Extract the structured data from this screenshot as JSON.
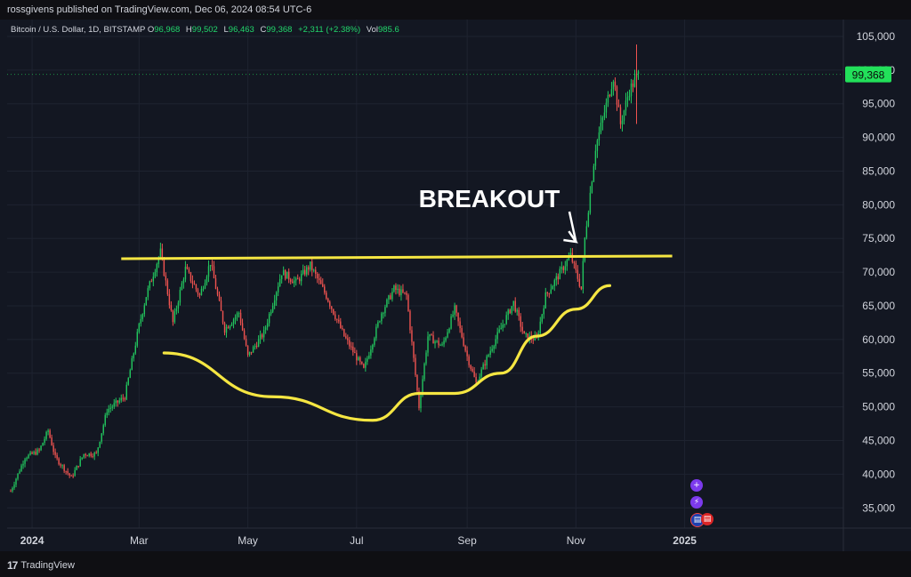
{
  "header": {
    "publish_line": "rossgivens published on TradingView.com, Dec 06, 2024 08:54 UTC-6"
  },
  "legend": {
    "symbol": "Bitcoin / U.S. Dollar, 1D, BITSTAMP",
    "o_label": "O",
    "o_value": "96,968",
    "h_label": "H",
    "h_value": "99,502",
    "l_label": "L",
    "l_value": "96,463",
    "c_label": "C",
    "c_value": "99,368",
    "change": "+2,311 (+2.38%)",
    "vol_label": "Vol",
    "vol_value": "985.6"
  },
  "footer": {
    "brand": "TradingView"
  },
  "colors": {
    "up": "#26a69a",
    "up_bright": "#22c55e",
    "down": "#ef5350",
    "annotation": "#f5e642",
    "price_tag": "#22e05a",
    "background": "#131722"
  },
  "icons": [
    "plus-circle-icon",
    "lightning-icon",
    "flag-icons"
  ],
  "chart_data": {
    "type": "candlestick",
    "title": "Bitcoin / U.S. Dollar, 1D, BITSTAMP",
    "x_tick_labels": [
      "2024",
      "Mar",
      "May",
      "Jul",
      "Sep",
      "Nov",
      "2025"
    ],
    "y_tick_labels": [
      "105,000",
      "100,000",
      "95,000",
      "90,000",
      "85,000",
      "80,000",
      "75,000",
      "70,000",
      "65,000",
      "60,000",
      "55,000",
      "50,000",
      "45,000",
      "40,000",
      "35,000"
    ],
    "y_ticks": [
      105000,
      100000,
      95000,
      90000,
      85000,
      80000,
      75000,
      70000,
      65000,
      60000,
      55000,
      50000,
      45000,
      40000,
      35000
    ],
    "ylim": [
      32000,
      107500
    ],
    "last_price_label": "99,368",
    "last_price": 99368,
    "annotation_text": "BREAKOUT",
    "resistance_level": 72000,
    "price_path": [
      [
        "2023-12-20",
        37500
      ],
      [
        "2023-12-28",
        42500
      ],
      [
        "2024-01-05",
        43500
      ],
      [
        "2024-01-10",
        46500
      ],
      [
        "2024-01-14",
        42500
      ],
      [
        "2024-01-23",
        39500
      ],
      [
        "2024-01-30",
        43000
      ],
      [
        "2024-02-06",
        43000
      ],
      [
        "2024-02-12",
        49500
      ],
      [
        "2024-02-22",
        51500
      ],
      [
        "2024-03-01",
        62000
      ],
      [
        "2024-03-05",
        66500
      ],
      [
        "2024-03-08",
        69000
      ],
      [
        "2024-03-13",
        73000
      ],
      [
        "2024-03-20",
        62500
      ],
      [
        "2024-03-27",
        70500
      ],
      [
        "2024-04-04",
        66500
      ],
      [
        "2024-04-10",
        71500
      ],
      [
        "2024-04-18",
        61500
      ],
      [
        "2024-04-26",
        64000
      ],
      [
        "2024-05-01",
        57500
      ],
      [
        "2024-05-10",
        61000
      ],
      [
        "2024-05-20",
        70000
      ],
      [
        "2024-05-28",
        68500
      ],
      [
        "2024-06-05",
        71000
      ],
      [
        "2024-06-14",
        66500
      ],
      [
        "2024-06-24",
        60500
      ],
      [
        "2024-07-05",
        55500
      ],
      [
        "2024-07-15",
        64000
      ],
      [
        "2024-07-22",
        67500
      ],
      [
        "2024-07-29",
        66500
      ],
      [
        "2024-08-05",
        50000
      ],
      [
        "2024-08-10",
        60500
      ],
      [
        "2024-08-18",
        59000
      ],
      [
        "2024-08-25",
        64500
      ],
      [
        "2024-09-01",
        57500
      ],
      [
        "2024-09-06",
        53500
      ],
      [
        "2024-09-15",
        59000
      ],
      [
        "2024-09-27",
        65500
      ],
      [
        "2024-10-03",
        60500
      ],
      [
        "2024-10-10",
        60000
      ],
      [
        "2024-10-15",
        66500
      ],
      [
        "2024-10-21",
        69000
      ],
      [
        "2024-10-29",
        72500
      ],
      [
        "2024-11-04",
        67500
      ],
      [
        "2024-11-06",
        75000
      ],
      [
        "2024-11-12",
        88500
      ],
      [
        "2024-11-22",
        99000
      ],
      [
        "2024-11-26",
        92000
      ],
      [
        "2024-12-01",
        97000
      ],
      [
        "2024-12-06",
        99368
      ]
    ],
    "annotations": [
      {
        "type": "horizontal-line",
        "label": "resistance",
        "y": 72000,
        "x_range": [
          "2024-03-01",
          "2024-12-25"
        ]
      },
      {
        "type": "curve",
        "label": "rounded-bottom",
        "points": [
          [
            "2024-03-15",
            58000
          ],
          [
            "2024-05-15",
            51500
          ],
          [
            "2024-07-10",
            48000
          ],
          [
            "2024-08-05",
            52000
          ],
          [
            "2024-08-25",
            52000
          ],
          [
            "2024-09-20",
            55000
          ],
          [
            "2024-10-10",
            60500
          ],
          [
            "2024-11-01",
            64500
          ],
          [
            "2024-11-20",
            68000
          ]
        ]
      },
      {
        "type": "arrow",
        "label": "BREAKOUT",
        "to": [
          "2024-11-05",
          74000
        ]
      }
    ],
    "grid": true
  }
}
